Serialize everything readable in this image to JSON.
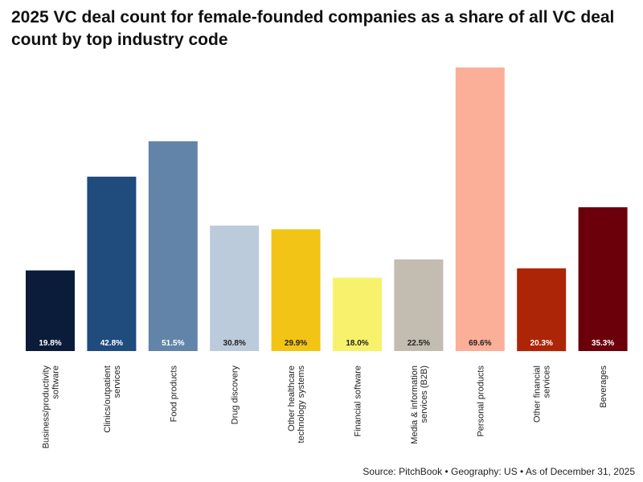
{
  "chart_data": {
    "type": "bar",
    "title": "2025 VC deal count for female-founded companies as a share of all VC deal count by top industry code",
    "xlabel": "",
    "ylabel": "",
    "ylim": [
      0,
      70
    ],
    "gridlines": false,
    "categories": [
      "Business/productivity software",
      "Clinics/outpatient services",
      "Food products",
      "Drug discovery",
      "Other healthcare technology systems",
      "Financial software",
      "Media & information services (B2B)",
      "Personal products",
      "Other financial services",
      "Beverages"
    ],
    "category_label_lines": [
      [
        "Business/productivity",
        "software"
      ],
      [
        "Clinics/outpatient",
        "services"
      ],
      [
        "Food products"
      ],
      [
        "Drug discovery"
      ],
      [
        "Other healthcare",
        "technology systems"
      ],
      [
        "Financial software"
      ],
      [
        "Media & information",
        "services (B2B)"
      ],
      [
        "Personal products"
      ],
      [
        "Other financial",
        "services"
      ],
      [
        "Beverages"
      ]
    ],
    "values": [
      19.8,
      42.8,
      51.5,
      30.8,
      29.9,
      18.0,
      22.5,
      69.6,
      20.3,
      35.3
    ],
    "value_labels": [
      "19.8%",
      "42.8%",
      "51.5%",
      "30.8%",
      "29.9%",
      "18.0%",
      "22.5%",
      "69.6%",
      "20.3%",
      "35.3%"
    ],
    "colors": [
      "#0b1c3a",
      "#1f4b7d",
      "#6284a8",
      "#bccbdb",
      "#f2c415",
      "#f8f16c",
      "#c2bcb1",
      "#fbae98",
      "#ad2507",
      "#6c000a"
    ],
    "label_colors": [
      "#ffffff",
      "#ffffff",
      "#ffffff",
      "#222222",
      "#222222",
      "#222222",
      "#222222",
      "#222222",
      "#ffffff",
      "#ffffff"
    ],
    "source": "Source: PitchBook • Geography: US • As of December 31, 2025"
  }
}
